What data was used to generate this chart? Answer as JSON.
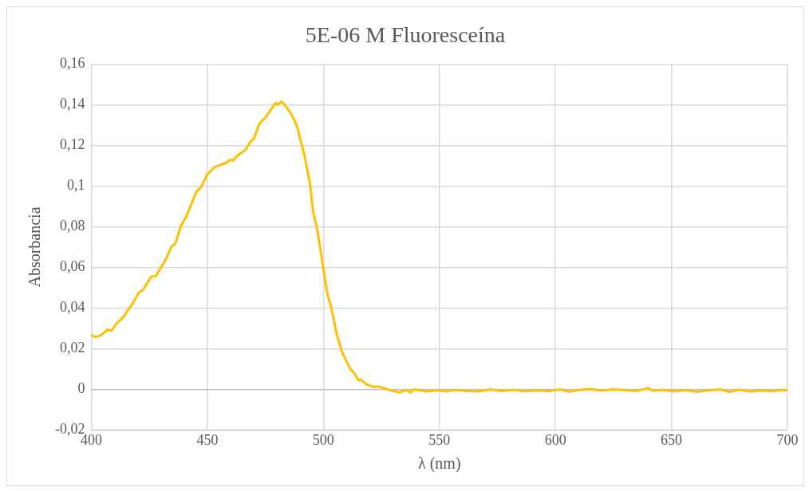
{
  "chart_data": {
    "type": "line",
    "title": "5E-06 M Fluoresceína",
    "xlabel": "λ (nm)",
    "ylabel": "Absorbancia",
    "x": [
      400,
      401.7,
      404,
      407,
      408.7,
      410.8,
      413.8,
      415.6,
      417.4,
      420.5,
      422.3,
      424.1,
      425.9,
      427.7,
      429.5,
      432,
      434.4,
      436.2,
      438.6,
      441,
      442.9,
      445.3,
      447.1,
      450.1,
      453.1,
      456.2,
      458,
      459.8,
      461,
      462.8,
      466.5,
      468.3,
      470.1,
      472.5,
      474.9,
      477.9,
      479.5,
      480.3,
      481.9,
      483.4,
      485.8,
      487.6,
      488.8,
      491.9,
      494.3,
      495.5,
      497.3,
      499.7,
      501.5,
      503.4,
      505.8,
      508.2,
      511.3,
      513.7,
      514.9,
      516.1,
      518.5,
      521.5,
      524,
      527.6,
      532.5,
      536,
      537.6,
      539,
      544,
      549,
      553,
      557,
      562,
      567,
      572,
      577,
      582,
      587,
      592,
      597,
      602,
      606,
      610,
      615,
      620,
      625,
      630,
      635,
      640,
      642,
      646,
      651,
      656,
      661,
      666,
      671,
      675,
      679,
      684,
      689,
      694,
      698,
      700
    ],
    "series": [
      {
        "color": "#ffc000",
        "values": [
          0.0267,
          0.0257,
          0.0265,
          0.0294,
          0.0288,
          0.0324,
          0.0355,
          0.0388,
          0.0415,
          0.0476,
          0.0489,
          0.0523,
          0.0556,
          0.0556,
          0.059,
          0.0637,
          0.07,
          0.0717,
          0.0805,
          0.0852,
          0.0906,
          0.0973,
          0.0993,
          0.106,
          0.1094,
          0.1107,
          0.1114,
          0.113,
          0.1126,
          0.1148,
          0.118,
          0.1214,
          0.1235,
          0.1309,
          0.1335,
          0.1385,
          0.141,
          0.14,
          0.1416,
          0.14,
          0.1362,
          0.1322,
          0.1289,
          0.1148,
          0.1006,
          0.0879,
          0.0791,
          0.0617,
          0.0482,
          0.0402,
          0.0267,
          0.018,
          0.0106,
          0.0073,
          0.0046,
          0.0047,
          0.0025,
          0.0012,
          0.0013,
          0,
          -0.0015,
          -0.0004,
          -0.0016,
          0,
          -0.001,
          -0.0005,
          -0.001,
          -0.0003,
          -0.0008,
          -0.001,
          0,
          -0.0009,
          -0.0002,
          -0.001,
          -0.0005,
          -0.0009,
          0,
          -0.0012,
          -0.0003,
          0.0002,
          -0.0006,
          0,
          -0.0004,
          -0.0008,
          0.0006,
          -0.0007,
          -0.0002,
          -0.001,
          -0.0004,
          -0.0012,
          -0.0005,
          0,
          -0.0013,
          -0.0002,
          -0.0011,
          -0.0006,
          -0.0009,
          -0.0003,
          -0.0004
        ]
      }
    ],
    "xlim": [
      400,
      700
    ],
    "xticks": [
      400,
      450,
      500,
      550,
      600,
      650,
      700
    ],
    "ylim": [
      -0.02,
      0.16
    ],
    "yticks": [
      {
        "value": -0.02,
        "label": "-0,02"
      },
      {
        "value": 0,
        "label": "0"
      },
      {
        "value": 0.02,
        "label": "0,02"
      },
      {
        "value": 0.04,
        "label": "0,04"
      },
      {
        "value": 0.06,
        "label": "0,06"
      },
      {
        "value": 0.08,
        "label": "0,08"
      },
      {
        "value": 0.1,
        "label": "0,1"
      },
      {
        "value": 0.12,
        "label": "0,12"
      },
      {
        "value": 0.14,
        "label": "0,14"
      },
      {
        "value": 0.16,
        "label": "0,16"
      }
    ],
    "grid": true,
    "legend": false,
    "marker": "none",
    "line_style": "solid"
  }
}
